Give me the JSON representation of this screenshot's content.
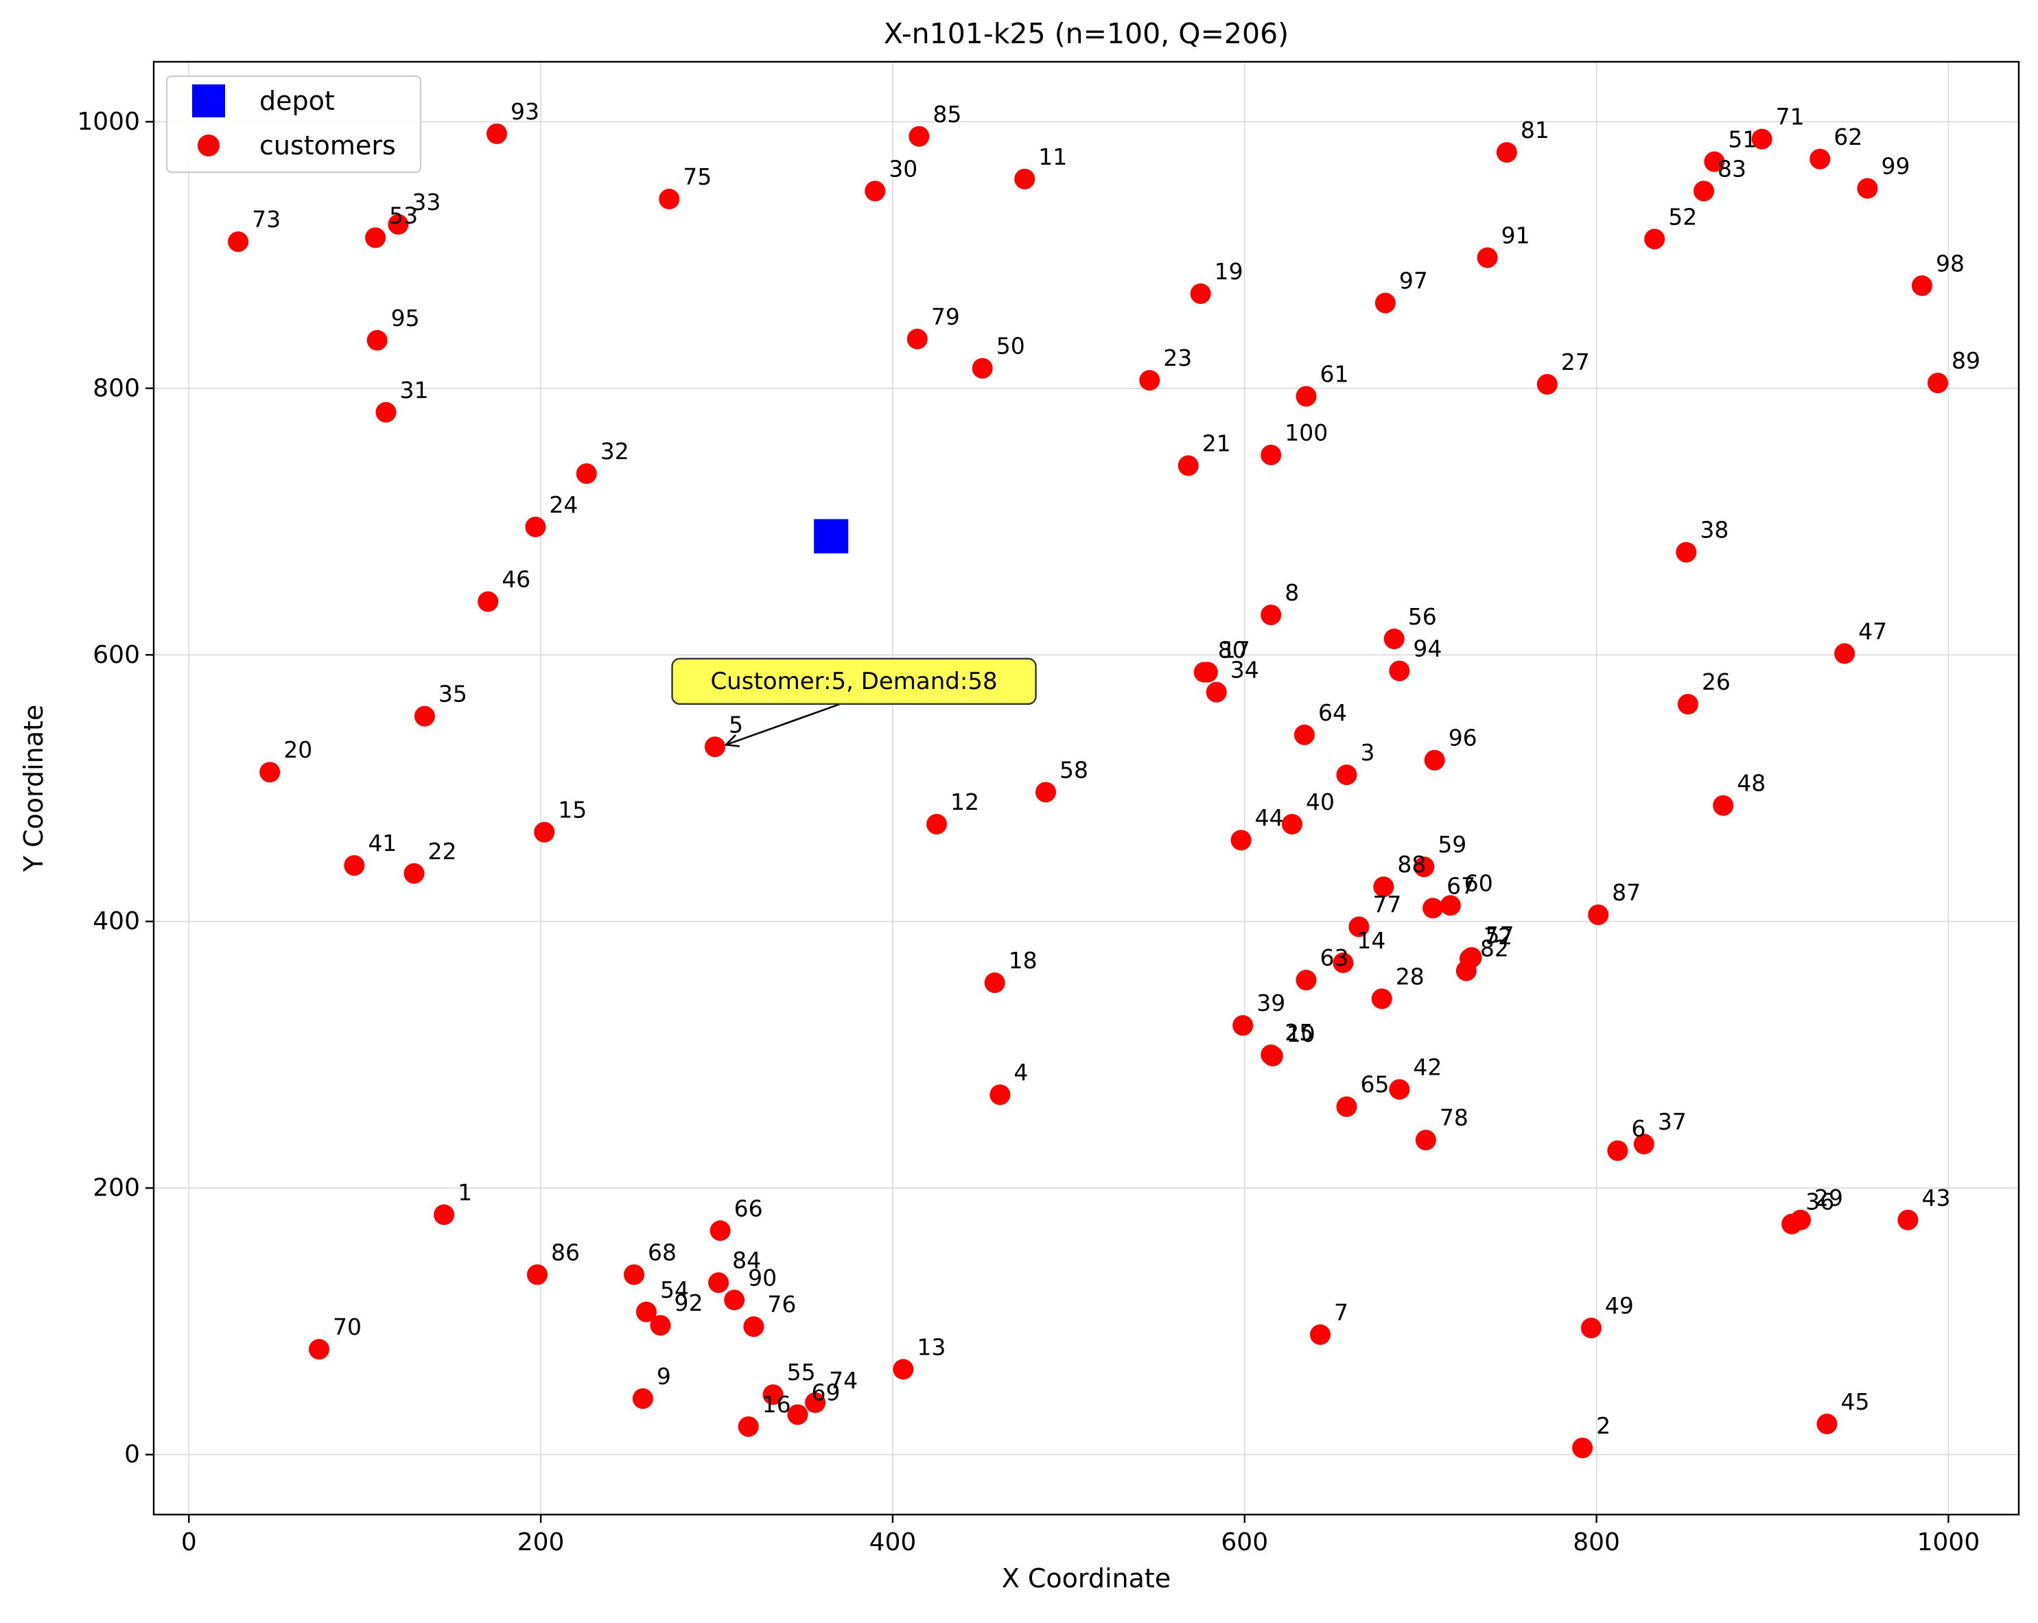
{
  "chart_data": {
    "type": "scatter",
    "title": "X-n101-k25 (n=100, Q=206)",
    "xlabel": "X Coordinate",
    "ylabel": "Y Coordinate",
    "xlim": [
      -20,
      1040
    ],
    "ylim": [
      -45,
      1045
    ],
    "xticks": [
      0,
      200,
      400,
      600,
      800,
      1000
    ],
    "yticks": [
      0,
      200,
      400,
      600,
      800,
      1000
    ],
    "grid": true,
    "legend_position": "top-left",
    "legend": [
      "depot",
      "customers"
    ],
    "colors": {
      "depot": "#0000ff",
      "customers": "#ff0000",
      "callout_bg": "#ffff55"
    },
    "depot": {
      "x": 365,
      "y": 689
    },
    "customers": [
      {
        "id": "1",
        "x": 145,
        "y": 180
      },
      {
        "id": "2",
        "x": 792,
        "y": 5
      },
      {
        "id": "3",
        "x": 658,
        "y": 510
      },
      {
        "id": "4",
        "x": 461,
        "y": 270
      },
      {
        "id": "5",
        "x": 299,
        "y": 531
      },
      {
        "id": "6",
        "x": 812,
        "y": 228
      },
      {
        "id": "7",
        "x": 643,
        "y": 90
      },
      {
        "id": "8",
        "x": 615,
        "y": 630
      },
      {
        "id": "9",
        "x": 258,
        "y": 42
      },
      {
        "id": "10",
        "x": 616,
        "y": 299
      },
      {
        "id": "11",
        "x": 475,
        "y": 957
      },
      {
        "id": "12",
        "x": 425,
        "y": 473
      },
      {
        "id": "13",
        "x": 406,
        "y": 64
      },
      {
        "id": "14",
        "x": 656,
        "y": 369
      },
      {
        "id": "15",
        "x": 202,
        "y": 467
      },
      {
        "id": "16",
        "x": 318,
        "y": 21
      },
      {
        "id": "17",
        "x": 579,
        "y": 587
      },
      {
        "id": "18",
        "x": 458,
        "y": 354
      },
      {
        "id": "19",
        "x": 575,
        "y": 871
      },
      {
        "id": "20",
        "x": 46,
        "y": 512
      },
      {
        "id": "21",
        "x": 568,
        "y": 742
      },
      {
        "id": "22",
        "x": 128,
        "y": 436
      },
      {
        "id": "23",
        "x": 546,
        "y": 806
      },
      {
        "id": "24",
        "x": 197,
        "y": 696
      },
      {
        "id": "25",
        "x": 615,
        "y": 300
      },
      {
        "id": "26",
        "x": 852,
        "y": 563
      },
      {
        "id": "27",
        "x": 772,
        "y": 803
      },
      {
        "id": "28",
        "x": 678,
        "y": 342
      },
      {
        "id": "29",
        "x": 916,
        "y": 176
      },
      {
        "id": "30",
        "x": 390,
        "y": 948
      },
      {
        "id": "31",
        "x": 112,
        "y": 782
      },
      {
        "id": "32",
        "x": 226,
        "y": 736
      },
      {
        "id": "33",
        "x": 119,
        "y": 923
      },
      {
        "id": "34",
        "x": 584,
        "y": 572
      },
      {
        "id": "35",
        "x": 134,
        "y": 554
      },
      {
        "id": "36",
        "x": 911,
        "y": 173
      },
      {
        "id": "37",
        "x": 827,
        "y": 233
      },
      {
        "id": "38",
        "x": 851,
        "y": 677
      },
      {
        "id": "39",
        "x": 599,
        "y": 322
      },
      {
        "id": "40",
        "x": 627,
        "y": 473
      },
      {
        "id": "41",
        "x": 94,
        "y": 442
      },
      {
        "id": "42",
        "x": 688,
        "y": 274
      },
      {
        "id": "43",
        "x": 977,
        "y": 176
      },
      {
        "id": "44",
        "x": 598,
        "y": 461
      },
      {
        "id": "45",
        "x": 931,
        "y": 23
      },
      {
        "id": "46",
        "x": 170,
        "y": 640
      },
      {
        "id": "47",
        "x": 941,
        "y": 601
      },
      {
        "id": "48",
        "x": 872,
        "y": 487
      },
      {
        "id": "49",
        "x": 797,
        "y": 95
      },
      {
        "id": "50",
        "x": 451,
        "y": 815
      },
      {
        "id": "51",
        "x": 867,
        "y": 970
      },
      {
        "id": "52",
        "x": 833,
        "y": 912
      },
      {
        "id": "53",
        "x": 106,
        "y": 913
      },
      {
        "id": "54",
        "x": 260,
        "y": 107
      },
      {
        "id": "55",
        "x": 332,
        "y": 45
      },
      {
        "id": "56",
        "x": 685,
        "y": 612
      },
      {
        "id": "57",
        "x": 729,
        "y": 373
      },
      {
        "id": "58",
        "x": 487,
        "y": 497
      },
      {
        "id": "59",
        "x": 702,
        "y": 441
      },
      {
        "id": "60",
        "x": 717,
        "y": 412
      },
      {
        "id": "61",
        "x": 635,
        "y": 794
      },
      {
        "id": "62",
        "x": 927,
        "y": 972
      },
      {
        "id": "63",
        "x": 635,
        "y": 356
      },
      {
        "id": "64",
        "x": 634,
        "y": 540
      },
      {
        "id": "65",
        "x": 658,
        "y": 261
      },
      {
        "id": "66",
        "x": 302,
        "y": 168
      },
      {
        "id": "67",
        "x": 707,
        "y": 410
      },
      {
        "id": "68",
        "x": 253,
        "y": 135
      },
      {
        "id": "69",
        "x": 346,
        "y": 30
      },
      {
        "id": "70",
        "x": 74,
        "y": 79
      },
      {
        "id": "71",
        "x": 894,
        "y": 987
      },
      {
        "id": "72",
        "x": 728,
        "y": 372
      },
      {
        "id": "73",
        "x": 28,
        "y": 910
      },
      {
        "id": "74",
        "x": 356,
        "y": 39
      },
      {
        "id": "75",
        "x": 273,
        "y": 942
      },
      {
        "id": "76",
        "x": 321,
        "y": 96
      },
      {
        "id": "77",
        "x": 665,
        "y": 396
      },
      {
        "id": "78",
        "x": 703,
        "y": 236
      },
      {
        "id": "79",
        "x": 414,
        "y": 837
      },
      {
        "id": "80",
        "x": 577,
        "y": 587
      },
      {
        "id": "81",
        "x": 749,
        "y": 977
      },
      {
        "id": "82",
        "x": 726,
        "y": 363
      },
      {
        "id": "83",
        "x": 861,
        "y": 948
      },
      {
        "id": "84",
        "x": 301,
        "y": 129
      },
      {
        "id": "85",
        "x": 415,
        "y": 989
      },
      {
        "id": "86",
        "x": 198,
        "y": 135
      },
      {
        "id": "87",
        "x": 801,
        "y": 405
      },
      {
        "id": "88",
        "x": 679,
        "y": 426
      },
      {
        "id": "89",
        "x": 994,
        "y": 804
      },
      {
        "id": "90",
        "x": 310,
        "y": 116
      },
      {
        "id": "91",
        "x": 738,
        "y": 898
      },
      {
        "id": "92",
        "x": 268,
        "y": 97
      },
      {
        "id": "93",
        "x": 175,
        "y": 991
      },
      {
        "id": "94",
        "x": 688,
        "y": 588
      },
      {
        "id": "95",
        "x": 107,
        "y": 836
      },
      {
        "id": "96",
        "x": 708,
        "y": 521
      },
      {
        "id": "97",
        "x": 680,
        "y": 864
      },
      {
        "id": "98",
        "x": 985,
        "y": 877
      },
      {
        "id": "99",
        "x": 954,
        "y": 950
      },
      {
        "id": "100",
        "x": 615,
        "y": 750
      }
    ],
    "annotation": {
      "text": "Customer:5, Demand:58",
      "customer": "5",
      "anchor_x": 378,
      "anchor_y": 575
    }
  }
}
